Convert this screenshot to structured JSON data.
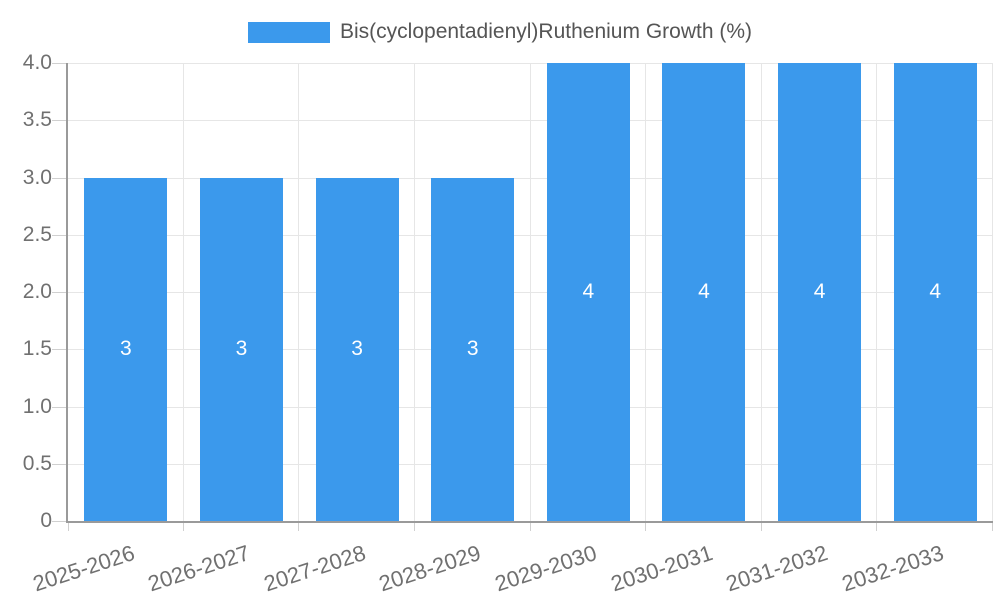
{
  "chart_data": {
    "type": "bar",
    "title": "",
    "legend": {
      "label": "Bis(cyclopentadienyl)Ruthenium Growth (%)",
      "position": "top"
    },
    "categories": [
      "2025-2026",
      "2026-2027",
      "2027-2028",
      "2028-2029",
      "2029-2030",
      "2030-2031",
      "2031-2032",
      "2032-2033"
    ],
    "values": [
      3,
      3,
      3,
      3,
      4,
      4,
      4,
      4
    ],
    "bar_value_labels": [
      "3",
      "3",
      "3",
      "3",
      "4",
      "4",
      "4",
      "4"
    ],
    "xlabel": "",
    "ylabel": "",
    "ylim": [
      0,
      4
    ],
    "ytick_labels": [
      "0",
      "0.5",
      "1.0",
      "1.5",
      "2.0",
      "2.5",
      "3.0",
      "3.5",
      "4.0"
    ],
    "grid": true,
    "x_label_rotation_deg": -18,
    "colors": {
      "bar": "#3B99EC",
      "bar_label_text": "#FFFFFF",
      "axis": "#9A9A9A",
      "gridline": "#E6E6E6",
      "tick_label_text": "#707070",
      "legend_text": "#555555",
      "background": "#FFFFFF"
    }
  }
}
